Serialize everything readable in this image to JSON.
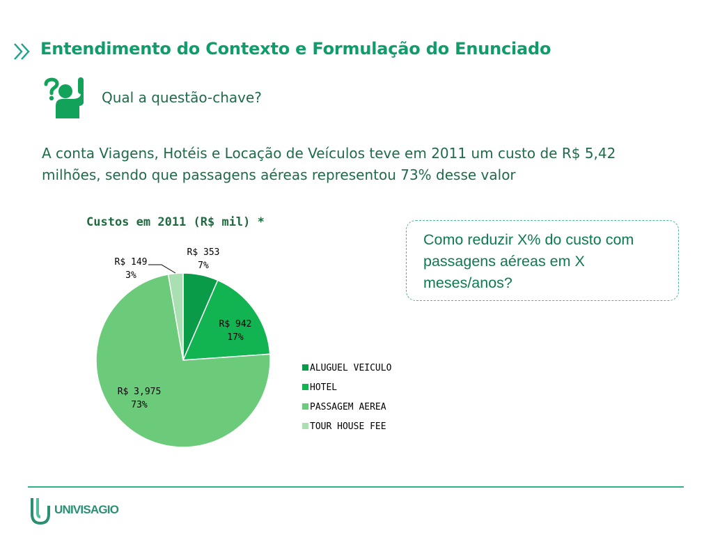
{
  "title": "Entendimento do Contexto e Formulação do Enunciado",
  "question_label": "Qual a questão-chave?",
  "context_text": "A conta Viagens, Hotéis e Locação de Veículos teve em 2011 um custo de R$ 5,42 milhões, sendo que passagens aéreas representou 73% desse valor",
  "callout_text": "Como reduzir X% do custo com passagens aéreas em X meses/anos?",
  "footer": {
    "logo_text": "UNIVISAGIO"
  },
  "colors": {
    "accent": "#0f9d6a",
    "aluguel": "#0a9b48",
    "hotel": "#11b450",
    "passagem": "#6ccb7b",
    "tour": "#a9dfb1"
  },
  "chart_data": {
    "type": "pie",
    "title": "Custos em 2011 (R$ mil) *",
    "legend_position": "right",
    "slices": [
      {
        "category": "ALUGUEL VEICULO",
        "value": 353,
        "value_label": "R$ 353",
        "percent_label": "7%",
        "color": "#0a9b48"
      },
      {
        "category": "HOTEL",
        "value": 942,
        "value_label": "R$ 942",
        "percent_label": "17%",
        "color": "#11b450"
      },
      {
        "category": "PASSAGEM AEREA",
        "value": 3975,
        "value_label": "R$ 3,975",
        "percent_label": "73%",
        "color": "#6ccb7b"
      },
      {
        "category": "TOUR HOUSE FEE",
        "value": 149,
        "value_label": "R$ 149",
        "percent_label": "3%",
        "color": "#a9dfb1"
      }
    ]
  }
}
